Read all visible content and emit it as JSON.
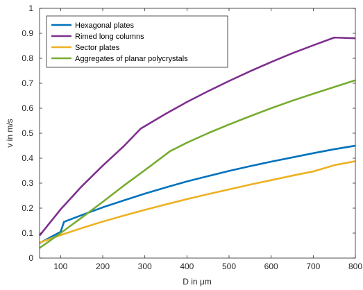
{
  "chart_data": {
    "type": "line",
    "title": "",
    "xlabel": "D in  μm",
    "ylabel": "v in m/s",
    "xlim": [
      50,
      800
    ],
    "ylim": [
      0,
      1
    ],
    "xticks": [
      100,
      200,
      300,
      400,
      500,
      600,
      700,
      800
    ],
    "yticks": [
      0,
      0.1,
      0.2,
      0.3,
      0.4,
      0.5,
      0.6,
      0.7,
      0.8,
      0.9,
      1
    ],
    "xtick_labels": [
      "100",
      "200",
      "300",
      "400",
      "500",
      "600",
      "700",
      "800"
    ],
    "ytick_labels": [
      "0",
      "0.1",
      "0.2",
      "0.3",
      "0.4",
      "0.5",
      "0.6",
      "0.7",
      "0.8",
      "0.9",
      "1"
    ],
    "grid": false,
    "legend_position": "top-left",
    "series": [
      {
        "name": "Hexagonal plates",
        "color": "#0072BD",
        "x": [
          50,
          100,
          108,
          150,
          200,
          250,
          300,
          350,
          400,
          450,
          500,
          550,
          600,
          650,
          700,
          750,
          800
        ],
        "y": [
          0.06,
          0.105,
          0.145,
          0.172,
          0.203,
          0.231,
          0.258,
          0.283,
          0.307,
          0.328,
          0.349,
          0.368,
          0.386,
          0.403,
          0.42,
          0.436,
          0.45
        ]
      },
      {
        "name": "Rimed long columns",
        "color": "#7E2F8E",
        "x": [
          50,
          100,
          150,
          200,
          250,
          290,
          350,
          400,
          450,
          500,
          550,
          600,
          650,
          700,
          750,
          800
        ],
        "y": [
          0.09,
          0.195,
          0.287,
          0.37,
          0.448,
          0.518,
          0.578,
          0.625,
          0.668,
          0.709,
          0.748,
          0.785,
          0.82,
          0.852,
          0.883,
          0.88
        ]
      },
      {
        "name": "Sector plates",
        "color": "#EDB120",
        "x": [
          50,
          100,
          150,
          200,
          250,
          300,
          350,
          400,
          450,
          500,
          550,
          600,
          650,
          700,
          750,
          800
        ],
        "y": [
          0.062,
          0.092,
          0.12,
          0.146,
          0.17,
          0.193,
          0.215,
          0.236,
          0.256,
          0.275,
          0.294,
          0.312,
          0.33,
          0.347,
          0.372,
          0.388
        ]
      },
      {
        "name": "Aggregates of planar polycrystals",
        "color": "#77AC30",
        "x": [
          50,
          100,
          150,
          200,
          250,
          300,
          360,
          400,
          450,
          500,
          550,
          600,
          650,
          700,
          750,
          800
        ],
        "y": [
          0.04,
          0.1,
          0.162,
          0.225,
          0.29,
          0.352,
          0.428,
          0.462,
          0.5,
          0.535,
          0.568,
          0.6,
          0.63,
          0.658,
          0.685,
          0.712
        ]
      }
    ]
  }
}
